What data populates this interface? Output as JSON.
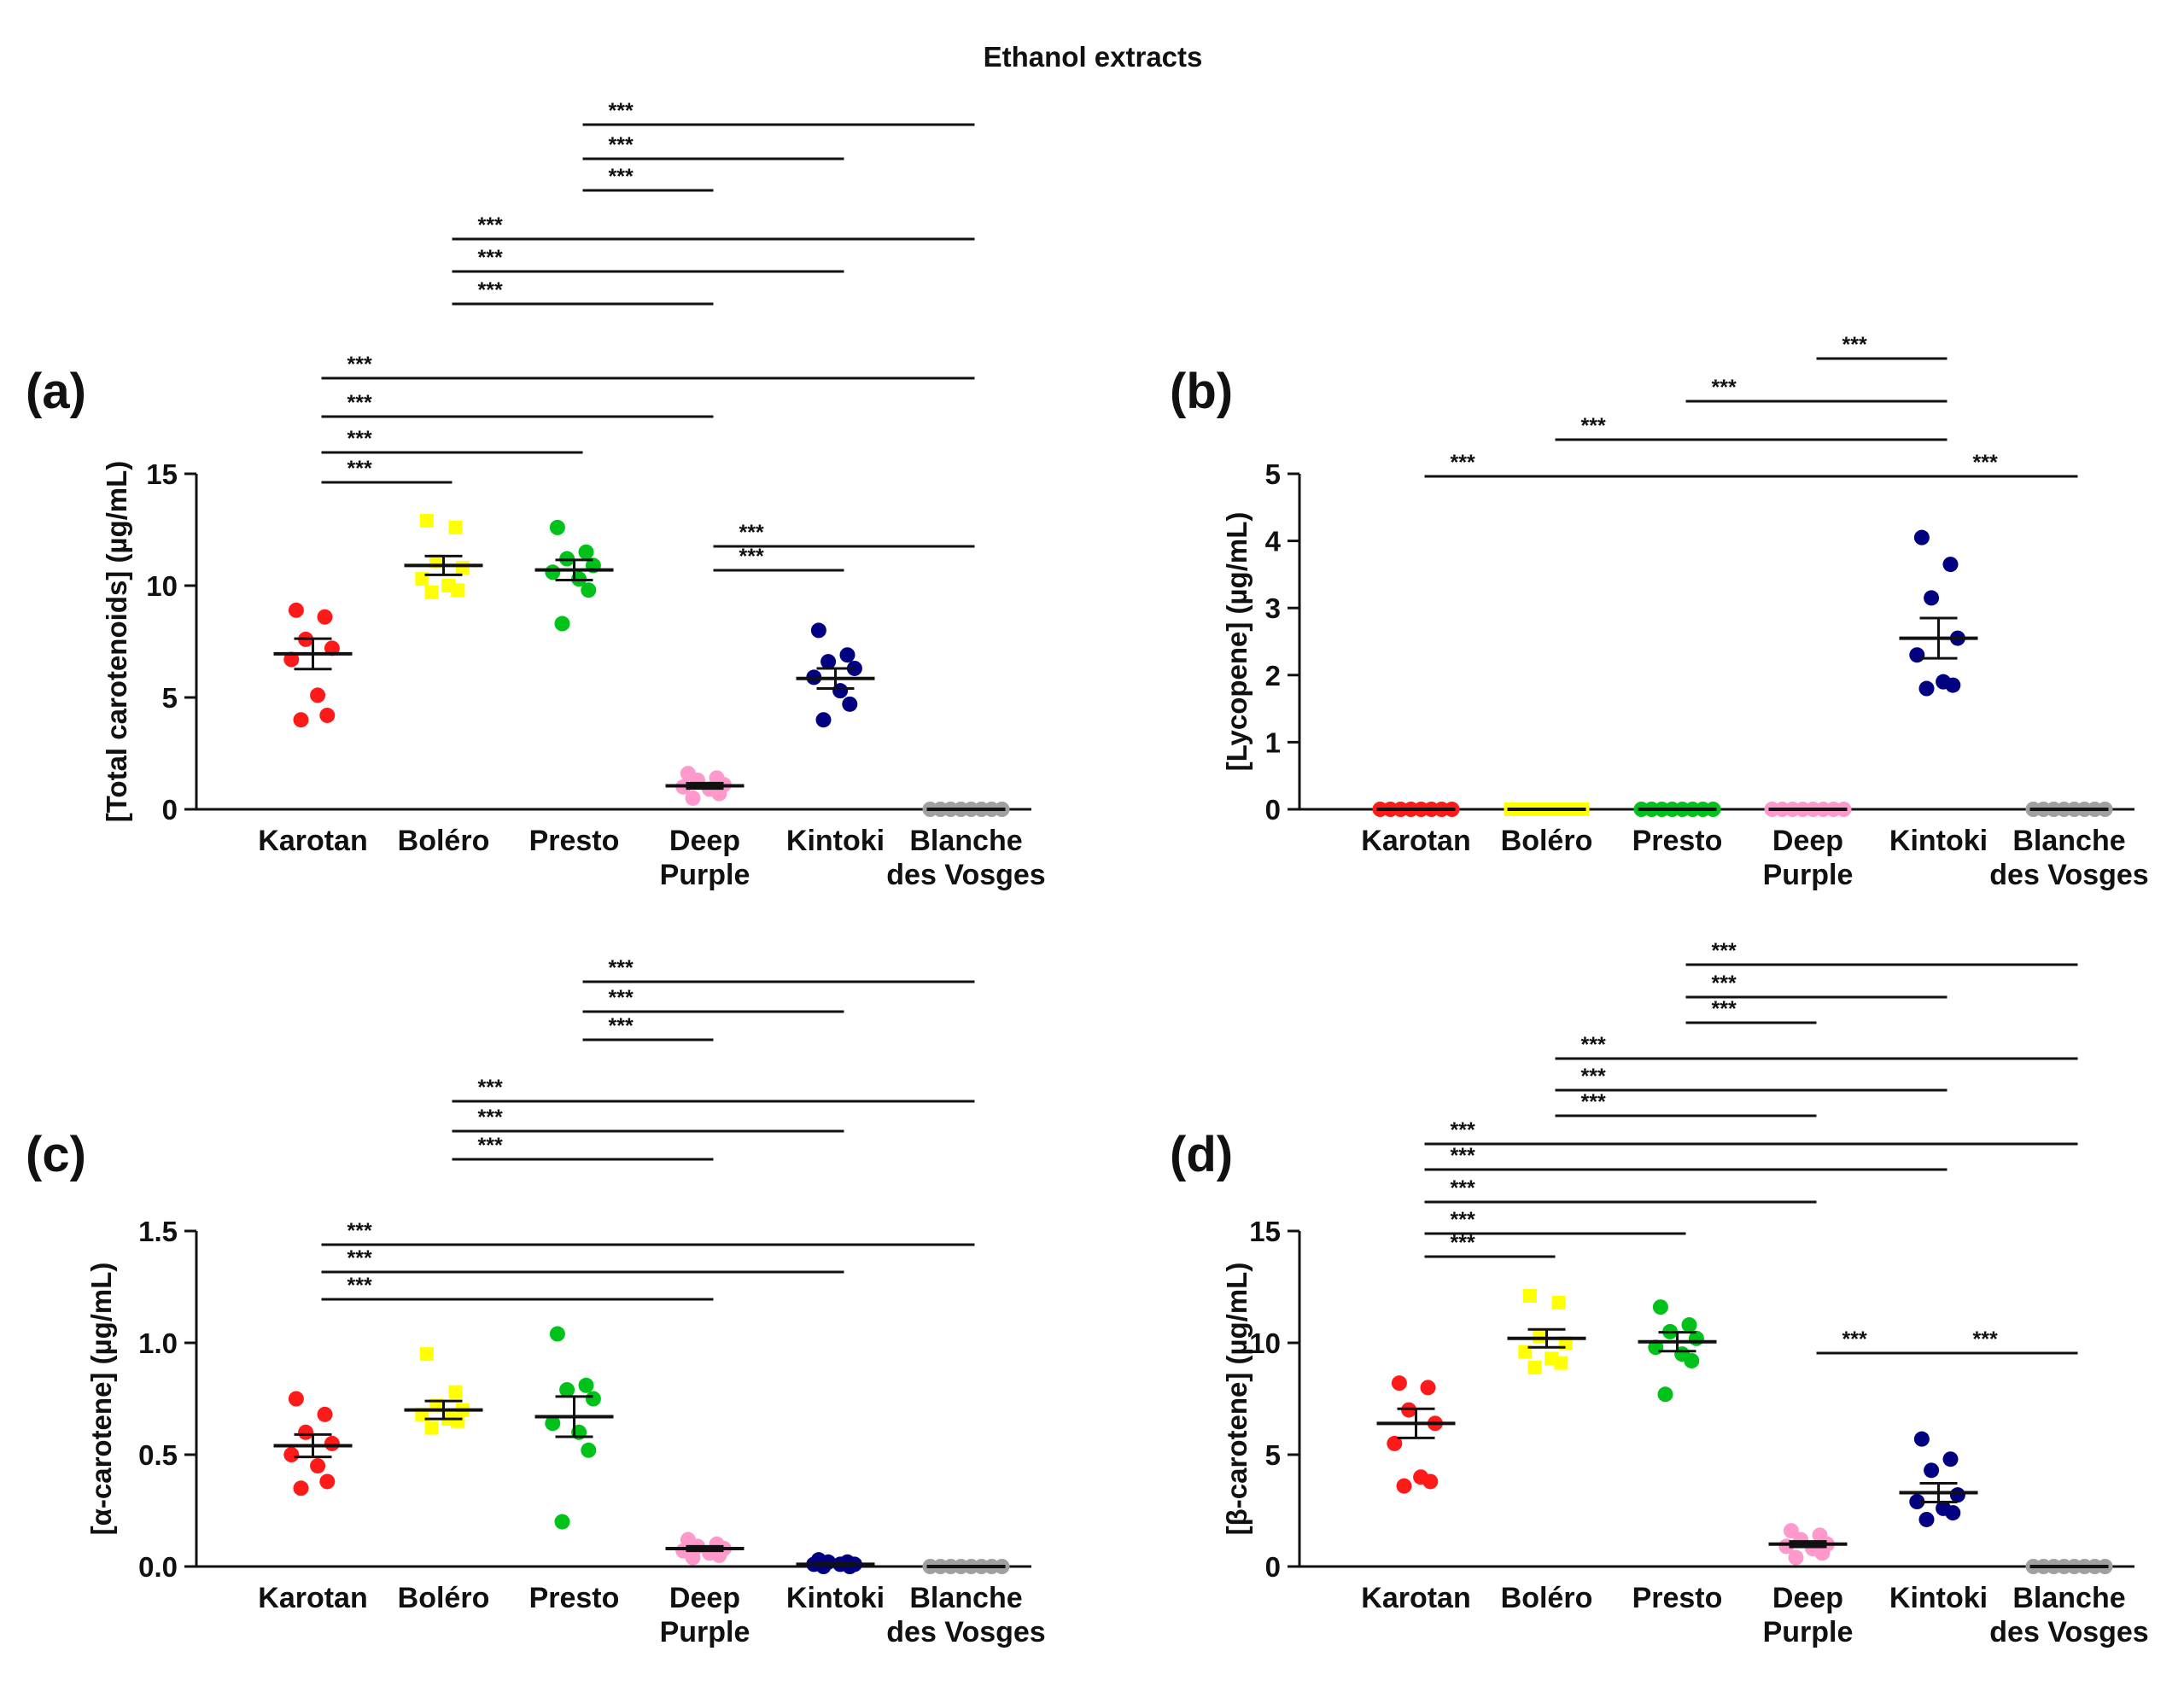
{
  "figure_title": "Ethanol extracts",
  "colors": {
    "Karotan": "#ff1a1a",
    "Boléro": "#ffff00",
    "Presto": "#00c21a",
    "Deep Purple": "#ff99cc",
    "Kintoki": "#000080",
    "Blanche des Vosges": "#a0a0a0",
    "axis": "#111111"
  },
  "chart_data": [
    {
      "id": "a",
      "panel_label": "(a)",
      "type": "scatter",
      "ylabel": "[Total carotenoids] (µg/mL)",
      "ylim": [
        0,
        15
      ],
      "yticks": [
        0,
        5,
        10,
        15
      ],
      "categories": [
        "Karotan",
        "Boléro",
        "Presto",
        "Deep Purple",
        "Kintoki",
        "Blanche des Vosges"
      ],
      "category_lines": [
        [
          "Karotan"
        ],
        [
          "Boléro"
        ],
        [
          "Presto"
        ],
        [
          "Deep",
          "Purple"
        ],
        [
          "Kintoki"
        ],
        [
          "Blanche",
          "des Vosges"
        ]
      ],
      "marker_shapes": [
        "circle",
        "square",
        "circle",
        "circle",
        "circle",
        "circle"
      ],
      "points": [
        [
          8.9,
          8.6,
          7.6,
          7.2,
          6.7,
          5.1,
          4.2,
          4.0
        ],
        [
          12.9,
          12.6,
          11.1,
          10.8,
          10.3,
          10.0,
          9.8,
          9.7
        ],
        [
          12.6,
          11.5,
          11.2,
          10.9,
          10.6,
          10.3,
          9.8,
          8.3
        ],
        [
          1.6,
          1.4,
          1.3,
          1.1,
          1.0,
          0.9,
          0.7,
          0.5
        ],
        [
          8.0,
          6.9,
          6.6,
          6.3,
          5.9,
          5.3,
          4.7,
          4.0
        ],
        [
          0,
          0,
          0,
          0,
          0,
          0,
          0,
          0
        ]
      ],
      "means": [
        6.95,
        10.9,
        10.7,
        1.05,
        5.85,
        0
      ],
      "sems": [
        0.68,
        0.42,
        0.45,
        0.12,
        0.45,
        0
      ],
      "comparisons": [
        {
          "from": 0,
          "to": 1,
          "label": "***"
        },
        {
          "from": 0,
          "to": 2,
          "label": "***"
        },
        {
          "from": 0,
          "to": 3,
          "label": "***"
        },
        {
          "from": 0,
          "to": 5,
          "label": "***"
        },
        {
          "from": 1,
          "to": 3,
          "label": "***"
        },
        {
          "from": 1,
          "to": 4,
          "label": "***"
        },
        {
          "from": 1,
          "to": 5,
          "label": "***"
        },
        {
          "from": 2,
          "to": 3,
          "label": "***"
        },
        {
          "from": 2,
          "to": 4,
          "label": "***"
        },
        {
          "from": 2,
          "to": 5,
          "label": "***"
        },
        {
          "from": 3,
          "to": 4,
          "label": "***"
        },
        {
          "from": 3,
          "to": 5,
          "label": "***"
        }
      ]
    },
    {
      "id": "b",
      "panel_label": "(b)",
      "type": "scatter",
      "ylabel": "[Lycopene] (µg/mL)",
      "ylim": [
        0,
        5
      ],
      "yticks": [
        0,
        1,
        2,
        3,
        4,
        5
      ],
      "categories": [
        "Karotan",
        "Boléro",
        "Presto",
        "Deep Purple",
        "Kintoki",
        "Blanche des Vosges"
      ],
      "category_lines": [
        [
          "Karotan"
        ],
        [
          "Boléro"
        ],
        [
          "Presto"
        ],
        [
          "Deep",
          "Purple"
        ],
        [
          "Kintoki"
        ],
        [
          "Blanche",
          "des Vosges"
        ]
      ],
      "marker_shapes": [
        "circle",
        "square",
        "circle",
        "circle",
        "circle",
        "circle"
      ],
      "points": [
        [
          0,
          0,
          0,
          0,
          0,
          0,
          0,
          0
        ],
        [
          0,
          0,
          0,
          0,
          0,
          0,
          0,
          0
        ],
        [
          0,
          0,
          0,
          0,
          0,
          0,
          0,
          0
        ],
        [
          0,
          0,
          0,
          0,
          0,
          0,
          0,
          0
        ],
        [
          4.05,
          3.65,
          3.15,
          2.55,
          2.3,
          1.9,
          1.85,
          1.8
        ],
        [
          0,
          0,
          0,
          0,
          0,
          0,
          0,
          0
        ]
      ],
      "means": [
        0,
        0,
        0,
        0,
        2.55,
        0
      ],
      "sems": [
        0,
        0,
        0,
        0,
        0.3,
        0
      ],
      "comparisons": [
        {
          "from": 0,
          "to": 4,
          "label": "***"
        },
        {
          "from": 1,
          "to": 4,
          "label": "***"
        },
        {
          "from": 2,
          "to": 4,
          "label": "***"
        },
        {
          "from": 3,
          "to": 4,
          "label": "***"
        },
        {
          "from": 4,
          "to": 5,
          "label": "***"
        }
      ]
    },
    {
      "id": "c",
      "panel_label": "(c)",
      "type": "scatter",
      "ylabel": "[α-carotene] (µg/mL)",
      "ylim": [
        0,
        1.5
      ],
      "yticks": [
        "0.0",
        "0.5",
        "1.0",
        "1.5"
      ],
      "categories": [
        "Karotan",
        "Boléro",
        "Presto",
        "Deep Purple",
        "Kintoki",
        "Blanche des Vosges"
      ],
      "category_lines": [
        [
          "Karotan"
        ],
        [
          "Boléro"
        ],
        [
          "Presto"
        ],
        [
          "Deep",
          "Purple"
        ],
        [
          "Kintoki"
        ],
        [
          "Blanche",
          "des Vosges"
        ]
      ],
      "marker_shapes": [
        "circle",
        "square",
        "circle",
        "circle",
        "circle",
        "circle"
      ],
      "points": [
        [
          0.75,
          0.68,
          0.6,
          0.55,
          0.5,
          0.45,
          0.38,
          0.35
        ],
        [
          0.95,
          0.78,
          0.72,
          0.7,
          0.68,
          0.66,
          0.65,
          0.62
        ],
        [
          1.04,
          0.81,
          0.79,
          0.75,
          0.64,
          0.6,
          0.52,
          0.2
        ],
        [
          0.12,
          0.1,
          0.09,
          0.08,
          0.07,
          0.06,
          0.05,
          0.04
        ],
        [
          0.03,
          0.02,
          0.02,
          0.01,
          0.01,
          0.01,
          0.0,
          0.0
        ],
        [
          0,
          0,
          0,
          0,
          0,
          0,
          0,
          0
        ]
      ],
      "means": [
        0.54,
        0.7,
        0.67,
        0.08,
        0.01,
        0
      ],
      "sems": [
        0.05,
        0.04,
        0.09,
        0.01,
        0.004,
        0
      ],
      "comparisons": [
        {
          "from": 0,
          "to": 3,
          "label": "***"
        },
        {
          "from": 0,
          "to": 4,
          "label": "***"
        },
        {
          "from": 0,
          "to": 5,
          "label": "***"
        },
        {
          "from": 1,
          "to": 3,
          "label": "***"
        },
        {
          "from": 1,
          "to": 4,
          "label": "***"
        },
        {
          "from": 1,
          "to": 5,
          "label": "***"
        },
        {
          "from": 2,
          "to": 3,
          "label": "***"
        },
        {
          "from": 2,
          "to": 4,
          "label": "***"
        },
        {
          "from": 2,
          "to": 5,
          "label": "***"
        }
      ]
    },
    {
      "id": "d",
      "panel_label": "(d)",
      "type": "scatter",
      "ylabel": "[β-carotene] (µg/mL)",
      "ylim": [
        0,
        15
      ],
      "yticks": [
        0,
        5,
        10,
        15
      ],
      "categories": [
        "Karotan",
        "Boléro",
        "Presto",
        "Deep Purple",
        "Kintoki",
        "Blanche des Vosges"
      ],
      "category_lines": [
        [
          "Karotan"
        ],
        [
          "Boléro"
        ],
        [
          "Presto"
        ],
        [
          "Deep",
          "Purple"
        ],
        [
          "Kintoki"
        ],
        [
          "Blanche",
          "des Vosges"
        ]
      ],
      "marker_shapes": [
        "circle",
        "square",
        "circle",
        "circle",
        "circle",
        "circle"
      ],
      "points": [
        [
          8.2,
          8.0,
          7.0,
          6.4,
          5.5,
          4.0,
          3.8,
          3.6
        ],
        [
          12.1,
          11.8,
          10.3,
          10.0,
          9.6,
          9.3,
          9.1,
          8.9
        ],
        [
          11.6,
          10.8,
          10.5,
          10.2,
          9.8,
          9.5,
          9.2,
          7.7
        ],
        [
          1.6,
          1.4,
          1.2,
          1.0,
          0.9,
          0.8,
          0.6,
          0.4
        ],
        [
          5.7,
          4.8,
          4.3,
          3.2,
          2.9,
          2.6,
          2.4,
          2.1
        ],
        [
          0,
          0,
          0,
          0,
          0,
          0,
          0,
          0
        ]
      ],
      "means": [
        6.4,
        10.2,
        10.05,
        1.0,
        3.3,
        0
      ],
      "sems": [
        0.65,
        0.4,
        0.42,
        0.12,
        0.42,
        0
      ],
      "comparisons": [
        {
          "from": 0,
          "to": 1,
          "label": "***"
        },
        {
          "from": 0,
          "to": 2,
          "label": "***"
        },
        {
          "from": 0,
          "to": 3,
          "label": "***"
        },
        {
          "from": 0,
          "to": 4,
          "label": "***"
        },
        {
          "from": 0,
          "to": 5,
          "label": "***"
        },
        {
          "from": 1,
          "to": 3,
          "label": "***"
        },
        {
          "from": 1,
          "to": 4,
          "label": "***"
        },
        {
          "from": 1,
          "to": 5,
          "label": "***"
        },
        {
          "from": 2,
          "to": 3,
          "label": "***"
        },
        {
          "from": 2,
          "to": 4,
          "label": "***"
        },
        {
          "from": 2,
          "to": 5,
          "label": "***"
        },
        {
          "from": 3,
          "to": 4,
          "label": "***"
        },
        {
          "from": 4,
          "to": 5,
          "label": "***"
        }
      ]
    }
  ]
}
